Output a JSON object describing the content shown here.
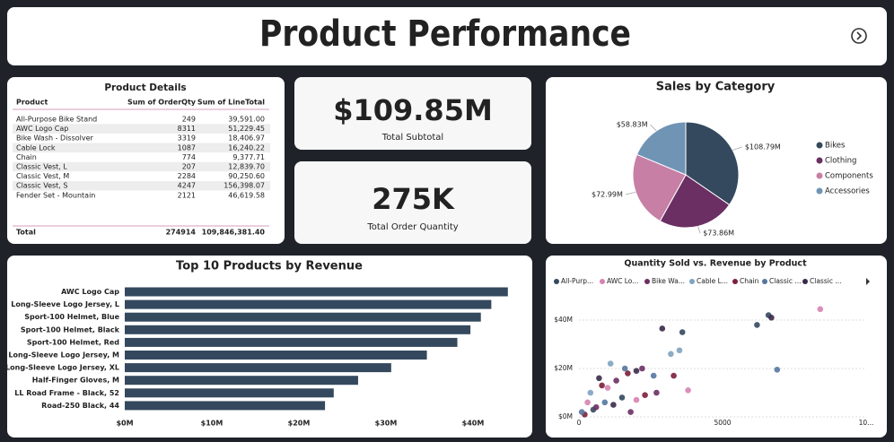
{
  "title": "Product Performance",
  "table": {
    "title": "Product Details",
    "columns": [
      "Product",
      "Sum of OrderQty",
      "Sum of LineTotal"
    ],
    "rows": [
      [
        "All-Purpose Bike Stand",
        "249",
        "39,591.00"
      ],
      [
        "AWC Logo Cap",
        "8311",
        "51,229.45"
      ],
      [
        "Bike Wash - Dissolver",
        "3319",
        "18,406.97"
      ],
      [
        "Cable Lock",
        "1087",
        "16,240.22"
      ],
      [
        "Chain",
        "774",
        "9,377.71"
      ],
      [
        "Classic Vest, L",
        "207",
        "12,839.70"
      ],
      [
        "Classic Vest, M",
        "2284",
        "90,250.60"
      ],
      [
        "Classic Vest, S",
        "4247",
        "156,398.07"
      ],
      [
        "Fender Set - Mountain",
        "2121",
        "46,619.58"
      ]
    ],
    "total": [
      "Total",
      "274914",
      "109,846,381.40"
    ]
  },
  "kpis": [
    {
      "value": "$109.85M",
      "label": "Total Subtotal"
    },
    {
      "value": "275K",
      "label": "Total Order Quantity"
    }
  ],
  "chart_data": [
    {
      "type": "pie",
      "title": "Sales by Category",
      "categories": [
        "Bikes",
        "Clothing",
        "Components",
        "Accessories"
      ],
      "values": [
        108.79,
        73.86,
        72.99,
        58.83
      ],
      "value_labels": [
        "$108.79M",
        "$73.86M",
        "$72.99M",
        "$58.83M"
      ],
      "colors": [
        "#34495e",
        "#6b2f63",
        "#c77fa6",
        "#7094b4"
      ],
      "legend": "right"
    },
    {
      "type": "hbar",
      "title": "Top 10 Products by Revenue",
      "categories": [
        "AWC Logo Cap",
        "Long-Sleeve Logo Jersey, L",
        "Sport-100 Helmet, Blue",
        "Sport-100 Helmet, Black",
        "Sport-100 Helmet, Red",
        "Long-Sleeve Logo Jersey, M",
        "Long-Sleeve Logo Jersey, XL",
        "Half-Finger Gloves, M",
        "LL Road Frame - Black, 52",
        "Road-250 Black, 44"
      ],
      "values": [
        44.0,
        42.1,
        40.9,
        39.7,
        38.2,
        34.7,
        30.6,
        26.8,
        24.0,
        23.0
      ],
      "color": "#34495e",
      "xlim": [
        0,
        45
      ],
      "xticks": [
        {
          "value": 0,
          "label": "$0M"
        },
        {
          "value": 10,
          "label": "$10M"
        },
        {
          "value": 20,
          "label": "$20M"
        },
        {
          "value": 30,
          "label": "$30M"
        },
        {
          "value": 40,
          "label": "$40M"
        }
      ],
      "grid": false
    },
    {
      "type": "scatter",
      "title": "Quantity Sold vs. Revenue by Product",
      "xlim": [
        0,
        10000
      ],
      "ylim": [
        0,
        50
      ],
      "xticks": [
        0,
        5000,
        {
          "value": 10000,
          "label": "10..."
        }
      ],
      "yticks": [
        {
          "value": 0,
          "label": "$0M"
        },
        {
          "value": 20,
          "label": "$20M"
        },
        {
          "value": 40,
          "label": "$40M"
        }
      ],
      "grid": true,
      "legend": "top",
      "series": [
        {
          "name": "All-Purp...",
          "color": "#34495e",
          "x": [
            6600,
            6200,
            3600,
            1500,
            500
          ],
          "values": [
            42,
            38,
            35,
            8,
            3
          ]
        },
        {
          "name": "AWC Lo...",
          "color": "#d783b2",
          "x": [
            8400,
            1000,
            2000,
            3800,
            300
          ],
          "values": [
            44.5,
            12,
            7,
            11,
            6
          ]
        },
        {
          "name": "Bike Wa...",
          "color": "#6b2f63",
          "x": [
            2200,
            1300,
            2700,
            600,
            1800
          ],
          "values": [
            20,
            15,
            10,
            4,
            2
          ]
        },
        {
          "name": "Cable L...",
          "color": "#7fa3c0",
          "x": [
            3500,
            3200,
            1100,
            400
          ],
          "values": [
            27.5,
            26,
            22,
            10
          ]
        },
        {
          "name": "Chain",
          "color": "#7b1f3a",
          "x": [
            3300,
            1700,
            800,
            2300,
            200
          ],
          "values": [
            17,
            18,
            13,
            9,
            1
          ]
        },
        {
          "name": "Classic ...",
          "color": "#5577a0",
          "x": [
            6900,
            2600,
            1600,
            900,
            100
          ],
          "values": [
            19.5,
            17,
            20,
            6,
            2
          ]
        },
        {
          "name": "Classic ...",
          "color": "#3a2a4a",
          "x": [
            6700,
            2900,
            2000,
            1200,
            700
          ],
          "values": [
            41,
            36.5,
            19,
            5,
            16
          ]
        }
      ]
    }
  ]
}
